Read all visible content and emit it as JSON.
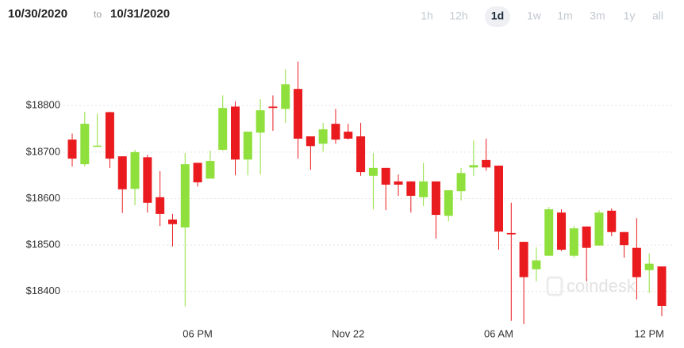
{
  "header": {
    "from": "10/30/2020",
    "to_word": "to",
    "to": "10/31/2020",
    "ranges": [
      "1h",
      "12h",
      "1d",
      "1w",
      "1m",
      "3m",
      "1y",
      "all"
    ],
    "selected_range": "1d"
  },
  "chart_data": {
    "type": "candlestick",
    "watermark": "coindesk",
    "categories": [
      null,
      null,
      null,
      null,
      null,
      null,
      null,
      null,
      null,
      null,
      "06 PM",
      null,
      null,
      null,
      null,
      null,
      null,
      null,
      null,
      null,
      null,
      null,
      "Nov 22",
      null,
      null,
      null,
      null,
      null,
      null,
      null,
      null,
      null,
      null,
      null,
      "06 AM",
      null,
      null,
      null,
      null,
      null,
      null,
      null,
      null,
      null,
      null,
      null,
      "12 PM",
      null
    ],
    "open": [
      18727,
      18674,
      18712,
      18786,
      18691,
      18621,
      18689,
      18603,
      18555,
      18538,
      18677,
      18643,
      18705,
      18798,
      18684,
      18742,
      18798,
      18793,
      18836,
      18734,
      18718,
      18761,
      18744,
      18734,
      18649,
      18666,
      18637,
      18637,
      18603,
      18637,
      18563,
      18616,
      18667,
      18683,
      18671,
      18526,
      18507,
      18448,
      18477,
      18570,
      18477,
      18540,
      18499,
      18574,
      18528,
      18494,
      18446,
      18454
    ],
    "high": [
      18740,
      18787,
      18783,
      18787,
      18691,
      18705,
      18694,
      18659,
      18567,
      18698,
      18677,
      18703,
      18822,
      18809,
      18744,
      18814,
      18822,
      18878,
      18895,
      18734,
      18763,
      18793,
      18761,
      18763,
      18698,
      18666,
      18652,
      18637,
      18677,
      18637,
      18618,
      18666,
      18725,
      18729,
      18671,
      18591,
      18507,
      18495,
      18582,
      18577,
      18541,
      18540,
      18575,
      18579,
      18528,
      18558,
      18482,
      18454
    ],
    "low": [
      18669,
      18669,
      18711,
      18666,
      18569,
      18586,
      18570,
      18541,
      18497,
      18368,
      18626,
      18643,
      18703,
      18650,
      18650,
      18652,
      18746,
      18763,
      18686,
      18662,
      18701,
      18718,
      18727,
      18649,
      18577,
      18575,
      18606,
      18570,
      18584,
      18514,
      18551,
      18596,
      18649,
      18660,
      18490,
      18337,
      18330,
      18422,
      18477,
      18487,
      18473,
      18422,
      18499,
      18519,
      18473,
      18383,
      18397,
      18347
    ],
    "close": [
      18686,
      18761,
      18714,
      18686,
      18620,
      18700,
      18591,
      18567,
      18545,
      18674,
      18635,
      18681,
      18795,
      18684,
      18744,
      18790,
      18795,
      18846,
      18729,
      18713,
      18749,
      18727,
      18729,
      18657,
      18666,
      18630,
      18630,
      18606,
      18637,
      18565,
      18618,
      18655,
      18672,
      18667,
      18529,
      18523,
      18431,
      18467,
      18577,
      18490,
      18536,
      18494,
      18570,
      18528,
      18500,
      18431,
      18460,
      18369
    ],
    "up_color": "#8fe03c",
    "down_color": "#ea1b1f",
    "ylim": [
      18328,
      18925
    ],
    "yticks": [
      {
        "value": 18400,
        "label": "$18400"
      },
      {
        "value": 18500,
        "label": "$18500"
      },
      {
        "value": 18600,
        "label": "$18600"
      },
      {
        "value": 18700,
        "label": "$18700"
      },
      {
        "value": 18800,
        "label": "$18800"
      }
    ],
    "grid": true
  }
}
